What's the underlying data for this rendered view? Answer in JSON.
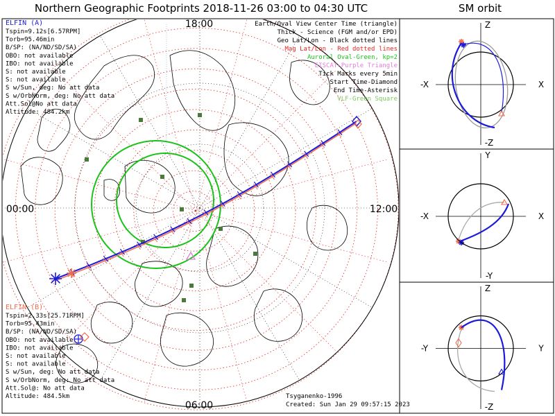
{
  "title": "Northern Geographic Footprints 2018-11-26 03:00 to 04:30 UTC",
  "orbit_title": "SM orbit",
  "map": {
    "local_time_labels": [
      "18:00",
      "12:00",
      "06:00",
      "00:00"
    ],
    "legend": [
      {
        "text": "Earth/Oval View Center Time (triangle)",
        "color": "#000000"
      },
      {
        "text": "Thick - Science (FGM and/or EPD)",
        "color": "#000000"
      },
      {
        "text": "Geo Lat/Lon - Black dotted lines",
        "color": "#000000"
      },
      {
        "text": "Mag Lat/Lon - Red dotted lines",
        "color": "#e8231f"
      },
      {
        "text": "Auroral Oval-Green, kp=2",
        "color": "#19c219"
      },
      {
        "text": "EISCAT-Purple Triangle",
        "color": "#e27bdc"
      },
      {
        "text": "Tick Marks every 5min",
        "color": "#000000"
      },
      {
        "text": "Start Time-Diamond",
        "color": "#000000"
      },
      {
        "text": "End Time-Asterisk",
        "color": "#000000"
      },
      {
        "text": "VLF-Green Square",
        "color": "#7cc85a"
      }
    ],
    "model_label": "Tsyganenko-1996",
    "created": "Created: Sun Jan 29 09:57:15 2023"
  },
  "probes": {
    "a": {
      "name": "ELFIN (A)",
      "color": "#1a1adb",
      "lines": [
        "Tspin=9.12s[6.57RPM]",
        "Torb=95.46min",
        "B/SP: (NA/ND/SD/SA)",
        "OBO: not available",
        "IBO: not available",
        "S: not available",
        "S: not available",
        "S w/Sun, deg: No att data",
        "S w/OrbNorm, deg: No att data",
        "Att.Sol@No att data",
        "Altitude: 484.2km"
      ]
    },
    "b": {
      "name": "ELFIN (B)",
      "color": "#f26b4a",
      "lines": [
        "Tspin=2.33s[25.71RPM]",
        "Torb=95.43min",
        "B/SP: (NA/ND/SD/SA)",
        "OBO: not available",
        "IBO: not available",
        "S: not available",
        "S: not available",
        "S w/Sun, deg: No att data",
        "S w/OrbNorm, deg: No att data",
        "Att.Sol@: No att data",
        "Altitude: 484.5km"
      ]
    }
  },
  "orbit_panels": [
    {
      "top": "Z",
      "bottom": "-Z",
      "left": "-X",
      "right": "X"
    },
    {
      "top": "Y",
      "bottom": "-Y",
      "left": "-X",
      "right": "X"
    },
    {
      "top": "Z",
      "bottom": "-Z",
      "left": "-Y",
      "right": "Y"
    }
  ],
  "chart_data": [
    {
      "type": "scatter",
      "subtype": "polar-map",
      "title": "Northern Geographic Footprints 2018-11-26 03:00 to 04:30 UTC",
      "projection": "north-polar, local-time orientation",
      "series": [
        {
          "name": "ELFIN (A)",
          "color": "#1a1adb",
          "markers": "start diamond, end asterisk, ticks every 5 min"
        },
        {
          "name": "ELFIN (B)",
          "color": "#f26b4a",
          "markers": "start diamond, end asterisk, ticks every 5 min"
        }
      ],
      "auroral_oval_kp": 2,
      "grid": true
    },
    {
      "type": "line",
      "subtype": "orbit-projections",
      "title": "SM orbit",
      "panels": [
        "X-Z",
        "X-Y",
        "Y-Z"
      ],
      "series": [
        {
          "name": "ELFIN (A)",
          "color": "#1a1adb"
        },
        {
          "name": "ELFIN (B)",
          "color": "#f26b4a"
        }
      ]
    }
  ]
}
